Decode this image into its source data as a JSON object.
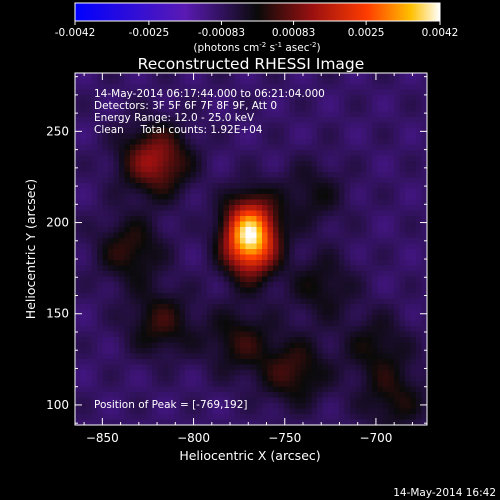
{
  "chart_data": {
    "type": "heatmap",
    "title": "Reconstructed RHESSI Image",
    "xlabel": "Heliocentric X (arcsec)",
    "ylabel": "Heliocentric Y (arcsec)",
    "xlim": [
      -865,
      -672
    ],
    "ylim": [
      89,
      282
    ],
    "x_ticks": [
      -850,
      -800,
      -750,
      -700
    ],
    "y_ticks": [
      100,
      150,
      200,
      250
    ],
    "colorbar": {
      "range": [
        -0.0042,
        0.0042
      ],
      "ticks": [
        "-0.0042",
        "-0.0025",
        "-0.00083",
        "0.00083",
        "0.0025",
        "0.0042"
      ],
      "tick_values": [
        -0.0042,
        -0.0025,
        -0.00083,
        0.00083,
        0.0025,
        0.0042
      ],
      "unit_parts": [
        "(photons cm",
        "-2",
        " s",
        "-1",
        " asec",
        "-2",
        ")"
      ]
    },
    "annotations": [
      "14-May-2014 06:17:44.000 to 06:21:04.000",
      "Detectors: 3F 5F 6F 7F 8F 9F, Att 0",
      "Energy Range: 12.0 - 25.0 keV",
      "Clean     Total counts: 1.92E+04"
    ],
    "peak_label": "Position of Peak = [-769,192]",
    "sources": [
      {
        "x": -769,
        "y": 192,
        "value": 0.0042
      },
      {
        "x": -821,
        "y": 234,
        "value": 0.0022
      },
      {
        "x": -835,
        "y": 185,
        "value": 0.0012
      },
      {
        "x": -745,
        "y": 118,
        "value": 0.0013
      },
      {
        "x": -775,
        "y": 135,
        "value": 0.0011
      },
      {
        "x": -818,
        "y": 145,
        "value": 0.0012
      },
      {
        "x": -700,
        "y": 132,
        "value": 0.0009
      },
      {
        "x": -690,
        "y": 103,
        "value": 0.001
      },
      {
        "x": -735,
        "y": 215,
        "value": 0.0008
      },
      {
        "x": -730,
        "y": 165,
        "value": 0.0009
      }
    ],
    "grid": false,
    "legend": "none"
  },
  "footer_timestamp": "14-May-2014 16:42"
}
